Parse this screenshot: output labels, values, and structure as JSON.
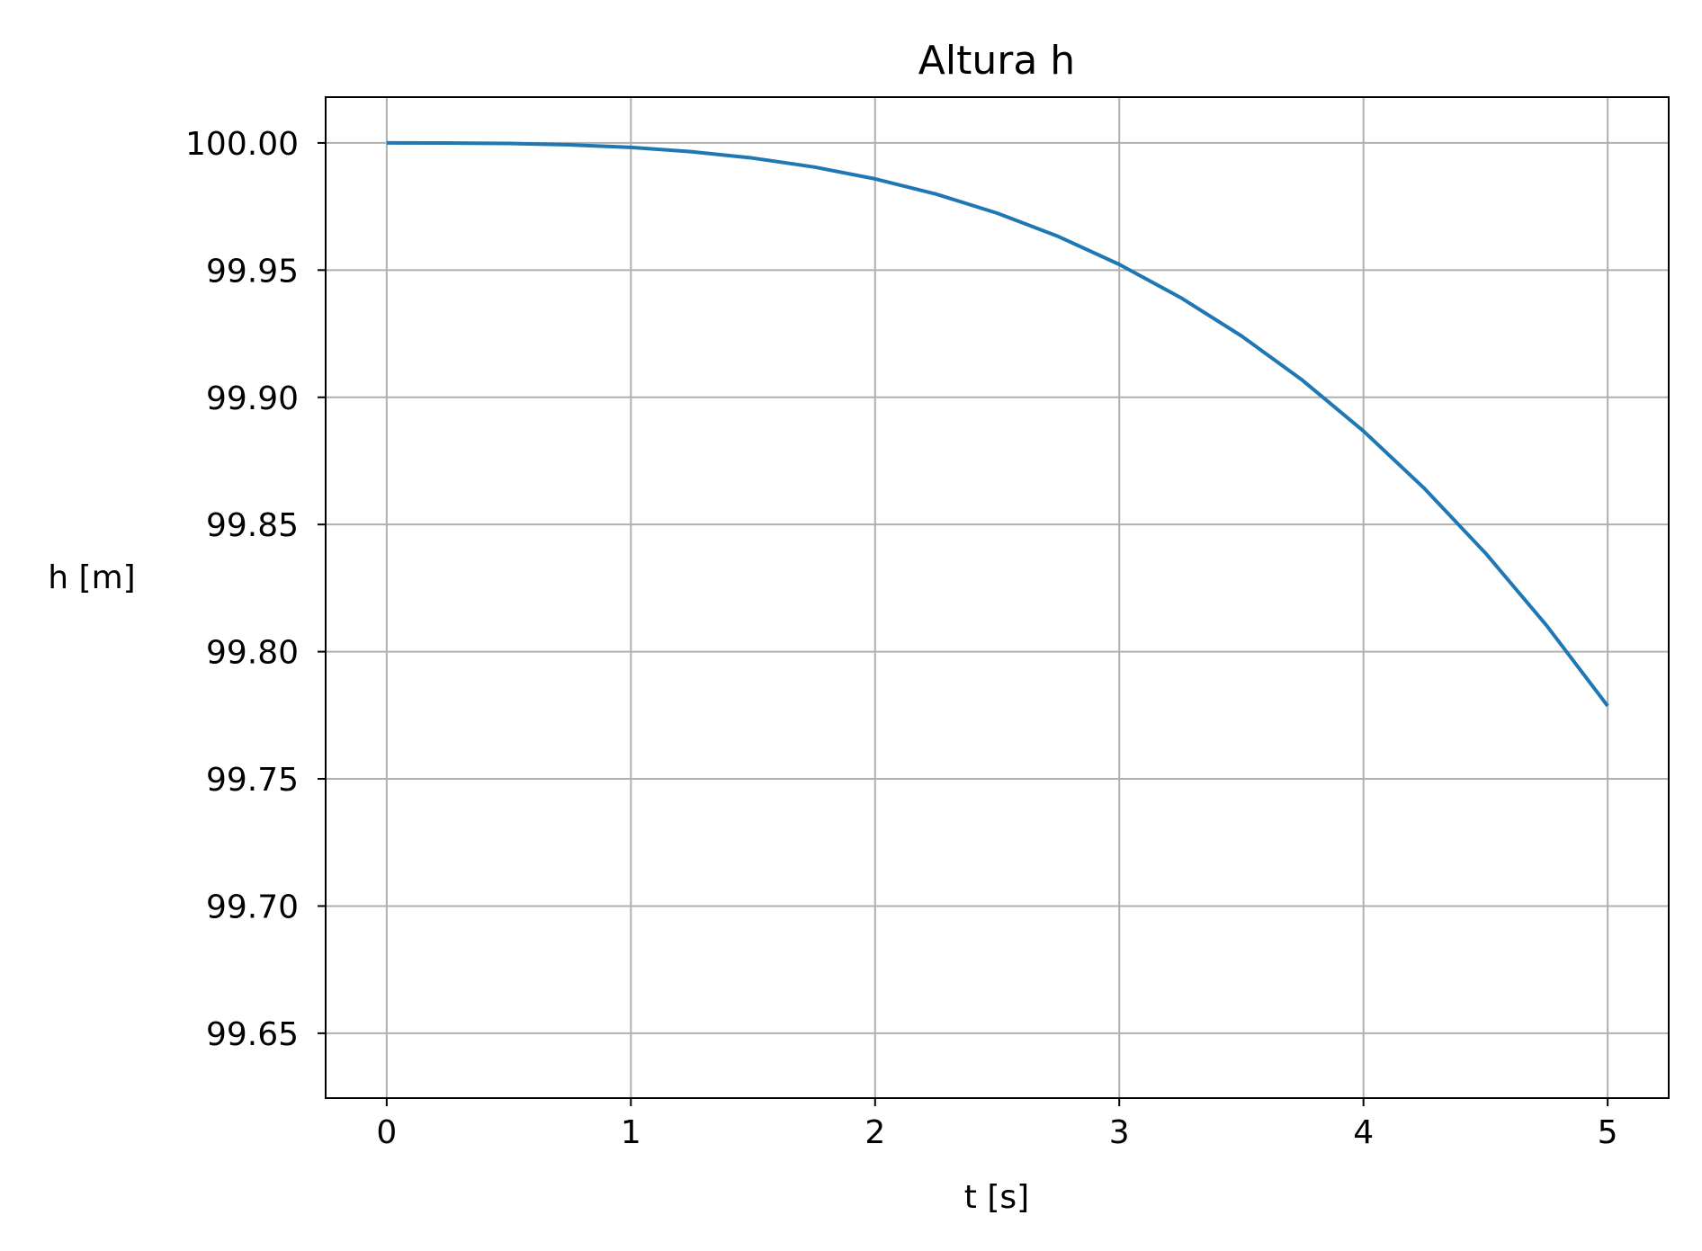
{
  "chart_data": {
    "type": "line",
    "title": "Altura h",
    "xlabel": "t [s]",
    "ylabel": "h [m]",
    "xlim": [
      -0.25,
      5.25
    ],
    "ylim": [
      99.6245,
      100.018
    ],
    "grid": true,
    "x_ticks": [
      0,
      1,
      2,
      3,
      4,
      5
    ],
    "x_tick_labels": [
      "0",
      "1",
      "2",
      "3",
      "4",
      "5"
    ],
    "y_ticks": [
      100.0,
      99.95,
      99.9,
      99.85,
      99.8,
      99.75,
      99.7,
      99.65
    ],
    "y_tick_labels": [
      "100.00",
      "99.95",
      "99.90",
      "99.85",
      "99.80",
      "99.75",
      "99.70",
      "99.65"
    ],
    "series": [
      {
        "color": "#1f77b4",
        "x": [
          0,
          0.25,
          0.5,
          0.75,
          1.0,
          1.25,
          1.5,
          1.75,
          2.0,
          2.25,
          2.5,
          2.75,
          3.0,
          3.25,
          3.5,
          3.75,
          4.0,
          4.25,
          4.5,
          4.75,
          5.0
        ],
        "y": [
          100.0,
          99.99997,
          99.99978,
          99.99925,
          99.99823,
          99.99655,
          99.99404,
          99.99054,
          99.98587,
          99.97987,
          99.97238,
          99.96323,
          99.95225,
          99.93928,
          99.92415,
          99.90669,
          99.88674,
          99.86413,
          99.8387,
          99.81027,
          99.77869
        ]
      }
    ]
  }
}
